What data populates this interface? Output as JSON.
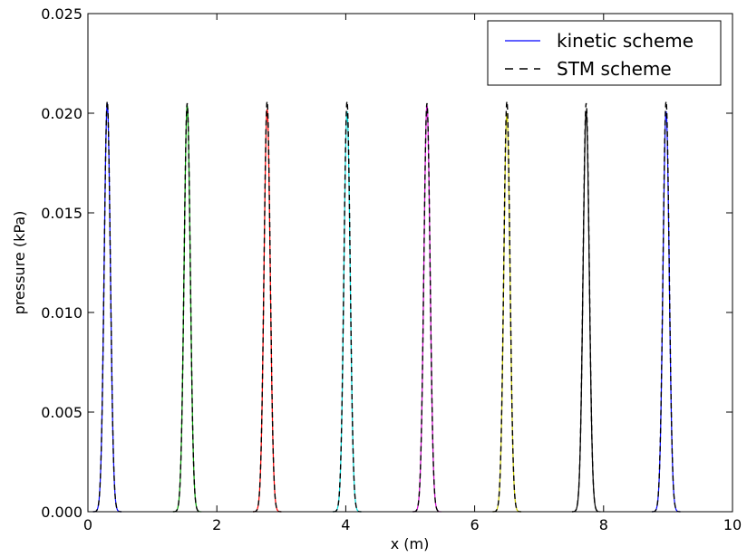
{
  "chart_data": {
    "type": "line",
    "title": "",
    "xlabel": "x (m)",
    "ylabel": "pressure (kPa)",
    "xlim": [
      0,
      10
    ],
    "ylim": [
      0,
      0.025
    ],
    "x_ticks": [
      "0",
      "2",
      "4",
      "6",
      "8",
      "10"
    ],
    "y_ticks": [
      "0.000",
      "0.005",
      "0.010",
      "0.015",
      "0.020",
      "0.025"
    ],
    "grid": false,
    "legend_position": "top-right",
    "legend": [
      {
        "label": "kinetic scheme",
        "style": "solid",
        "color": "#0000ff"
      },
      {
        "label": "STM scheme",
        "style": "dashed",
        "color": "#000000"
      }
    ],
    "series": [
      {
        "center": 0.3,
        "peak": 0.0205,
        "color": "#0000ff",
        "dashed_peak": 0.0206
      },
      {
        "center": 1.54,
        "peak": 0.0204,
        "color": "#00a000",
        "dashed_peak": 0.0205
      },
      {
        "center": 2.78,
        "peak": 0.0202,
        "color": "#ff0000",
        "dashed_peak": 0.0206
      },
      {
        "center": 4.02,
        "peak": 0.0201,
        "color": "#00d8d8",
        "dashed_peak": 0.0206
      },
      {
        "center": 5.26,
        "peak": 0.0204,
        "color": "#d000d0",
        "dashed_peak": 0.0205
      },
      {
        "center": 6.5,
        "peak": 0.02,
        "color": "#c8c800",
        "dashed_peak": 0.0206
      },
      {
        "center": 7.73,
        "peak": 0.0201,
        "color": "#000000",
        "dashed_peak": 0.0205
      },
      {
        "center": 8.97,
        "peak": 0.0201,
        "color": "#0000ff",
        "dashed_peak": 0.0206
      }
    ]
  }
}
